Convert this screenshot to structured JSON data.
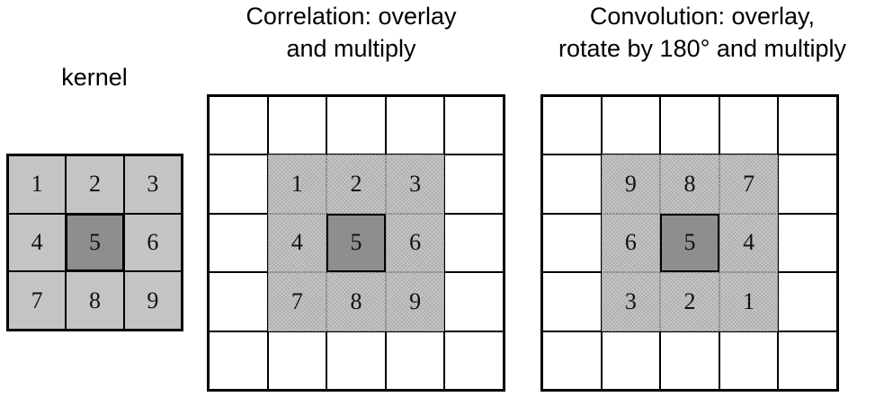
{
  "titles": {
    "kernel": "kernel",
    "correlation_line1": "Correlation: overlay",
    "correlation_line2": "and multiply",
    "convolution_line1": "Convolution: overlay,",
    "convolution_line2": "rotate by 180° and multiply"
  },
  "kernel": [
    [
      "1",
      "2",
      "3"
    ],
    [
      "4",
      "5",
      "6"
    ],
    [
      "7",
      "8",
      "9"
    ]
  ],
  "correlation": [
    [
      "1",
      "2",
      "3"
    ],
    [
      "4",
      "5",
      "6"
    ],
    [
      "7",
      "8",
      "9"
    ]
  ],
  "convolution": [
    [
      "9",
      "8",
      "7"
    ],
    [
      "6",
      "5",
      "4"
    ],
    [
      "3",
      "2",
      "1"
    ]
  ]
}
